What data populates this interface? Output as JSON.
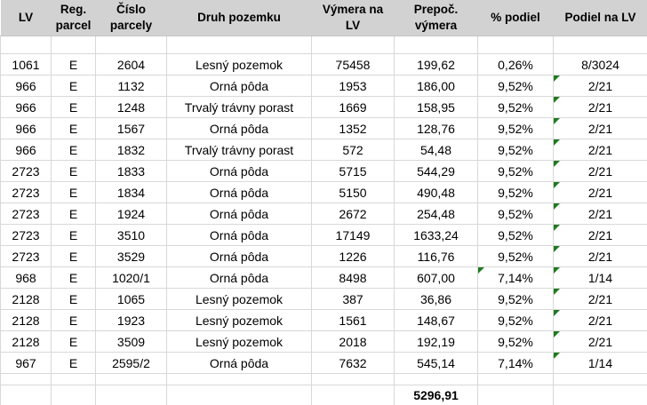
{
  "table": {
    "headers": [
      {
        "label": "LV"
      },
      {
        "label": "Reg. parcel"
      },
      {
        "label": "Číslo parcely"
      },
      {
        "label": "Druh pozemku"
      },
      {
        "label": "Výmera na LV"
      },
      {
        "label": "Prepoč. výmera"
      },
      {
        "label": "% podiel"
      },
      {
        "label": "Podiel na LV"
      }
    ],
    "rows": [
      {
        "lv": "1061",
        "reg": "E",
        "cislo": "2604",
        "druh": "Lesný pozemok",
        "vymera": "75458",
        "prepoc": "199,62",
        "pct": "0,26%",
        "podiel": "8/3024",
        "flag_pct": false,
        "flag_podiel": false
      },
      {
        "lv": "966",
        "reg": "E",
        "cislo": "1132",
        "druh": "Orná pôda",
        "vymera": "1953",
        "prepoc": "186,00",
        "pct": "9,52%",
        "podiel": "2/21",
        "flag_pct": false,
        "flag_podiel": true
      },
      {
        "lv": "966",
        "reg": "E",
        "cislo": "1248",
        "druh": "Trvalý trávny porast",
        "vymera": "1669",
        "prepoc": "158,95",
        "pct": "9,52%",
        "podiel": "2/21",
        "flag_pct": false,
        "flag_podiel": true
      },
      {
        "lv": "966",
        "reg": "E",
        "cislo": "1567",
        "druh": "Orná pôda",
        "vymera": "1352",
        "prepoc": "128,76",
        "pct": "9,52%",
        "podiel": "2/21",
        "flag_pct": false,
        "flag_podiel": true
      },
      {
        "lv": "966",
        "reg": "E",
        "cislo": "1832",
        "druh": "Trvalý trávny porast",
        "vymera": "572",
        "prepoc": "54,48",
        "pct": "9,52%",
        "podiel": "2/21",
        "flag_pct": false,
        "flag_podiel": true
      },
      {
        "lv": "2723",
        "reg": "E",
        "cislo": "1833",
        "druh": "Orná pôda",
        "vymera": "5715",
        "prepoc": "544,29",
        "pct": "9,52%",
        "podiel": "2/21",
        "flag_pct": false,
        "flag_podiel": true
      },
      {
        "lv": "2723",
        "reg": "E",
        "cislo": "1834",
        "druh": "Orná pôda",
        "vymera": "5150",
        "prepoc": "490,48",
        "pct": "9,52%",
        "podiel": "2/21",
        "flag_pct": false,
        "flag_podiel": true
      },
      {
        "lv": "2723",
        "reg": "E",
        "cislo": "1924",
        "druh": "Orná pôda",
        "vymera": "2672",
        "prepoc": "254,48",
        "pct": "9,52%",
        "podiel": "2/21",
        "flag_pct": false,
        "flag_podiel": true
      },
      {
        "lv": "2723",
        "reg": "E",
        "cislo": "3510",
        "druh": "Orná pôda",
        "vymera": "17149",
        "prepoc": "1633,24",
        "pct": "9,52%",
        "podiel": "2/21",
        "flag_pct": false,
        "flag_podiel": true
      },
      {
        "lv": "2723",
        "reg": "E",
        "cislo": "3529",
        "druh": "Orná pôda",
        "vymera": "1226",
        "prepoc": "116,76",
        "pct": "9,52%",
        "podiel": "2/21",
        "flag_pct": false,
        "flag_podiel": true
      },
      {
        "lv": "968",
        "reg": "E",
        "cislo": "1020/1",
        "druh": "Orná pôda",
        "vymera": "8498",
        "prepoc": "607,00",
        "pct": "7,14%",
        "podiel": "1/14",
        "flag_pct": true,
        "flag_podiel": true
      },
      {
        "lv": "2128",
        "reg": "E",
        "cislo": "1065",
        "druh": "Lesný pozemok",
        "vymera": "387",
        "prepoc": "36,86",
        "pct": "9,52%",
        "podiel": "2/21",
        "flag_pct": false,
        "flag_podiel": true
      },
      {
        "lv": "2128",
        "reg": "E",
        "cislo": "1923",
        "druh": "Lesný pozemok",
        "vymera": "1561",
        "prepoc": "148,67",
        "pct": "9,52%",
        "podiel": "2/21",
        "flag_pct": false,
        "flag_podiel": true
      },
      {
        "lv": "2128",
        "reg": "E",
        "cislo": "3509",
        "druh": "Lesný pozemok",
        "vymera": "2018",
        "prepoc": "192,19",
        "pct": "9,52%",
        "podiel": "2/21",
        "flag_pct": false,
        "flag_podiel": true
      },
      {
        "lv": "967",
        "reg": "E",
        "cislo": "2595/2",
        "druh": "Orná pôda",
        "vymera": "7632",
        "prepoc": "545,14",
        "pct": "7,14%",
        "podiel": "1/14",
        "flag_pct": false,
        "flag_podiel": true
      }
    ],
    "total_prepoc": "5296,91"
  },
  "colors": {
    "header_bg": "#d2d2d2",
    "gridline": "#d8d8d8",
    "error_flag_green": "#1e7a1e"
  },
  "icons": {
    "error_flag": "cell-error-indicator-triangle"
  }
}
